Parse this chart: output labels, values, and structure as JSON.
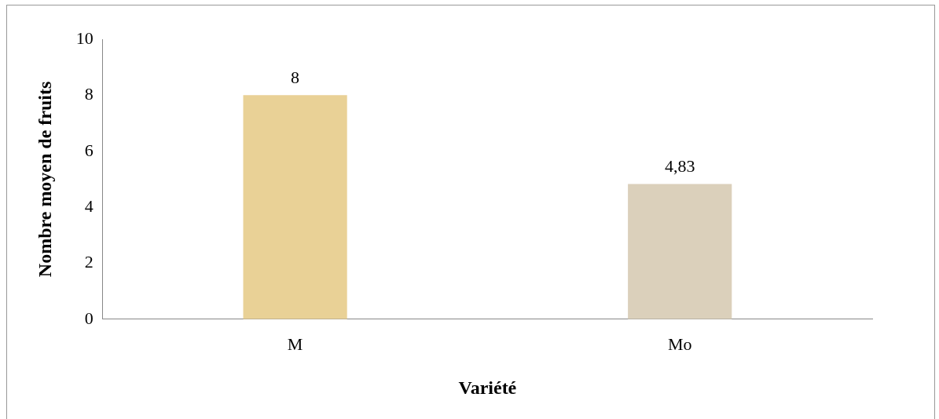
{
  "chart_data": {
    "type": "bar",
    "xlabel": "Variété",
    "ylabel": "Nombre moyen de fruits",
    "categories": [
      "M",
      "Mo"
    ],
    "values": [
      8,
      4.83
    ],
    "colors": [
      "#e9d196",
      "#dbd0bb"
    ],
    "value_labels": [
      "8",
      "4,83"
    ],
    "ylim": [
      0,
      10
    ],
    "yticks": [
      0,
      2,
      4,
      6,
      8,
      10
    ],
    "grid": false,
    "legend": false
  }
}
